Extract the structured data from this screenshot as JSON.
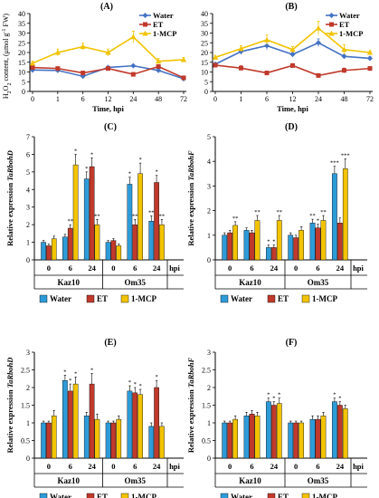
{
  "colors": {
    "water_line": "#4472C4",
    "et_line": "#C0392B",
    "mcp_line": "#F2C300",
    "water_bar": "#2E9BD9",
    "et_bar": "#C0392B",
    "mcp_bar": "#F2C300",
    "axis": "#000000"
  },
  "chart_data": [
    {
      "type": "line",
      "panel": "(A)",
      "title": "(A)",
      "xlabel": "Time, hpi",
      "ylabel": "H2O2 content, (μmol g-1 FW)",
      "x": [
        "0",
        "1",
        "6",
        "12",
        "24",
        "48",
        "72"
      ],
      "ylim": [
        0,
        40
      ],
      "yticks": [
        0,
        5,
        10,
        15,
        20,
        25,
        30,
        35,
        40
      ],
      "legend_position": "top-right",
      "series": [
        {
          "name": "Water",
          "values": [
            11.0,
            10.8,
            7.8,
            12.3,
            13.2,
            10.8,
            6.5
          ],
          "errors": [
            0.5,
            0.6,
            0.6,
            0.6,
            0.6,
            0.6,
            0.5
          ]
        },
        {
          "name": "ET",
          "values": [
            12.3,
            11.8,
            9.5,
            11.8,
            8.8,
            12.8,
            7.0
          ],
          "errors": [
            0.6,
            0.7,
            0.7,
            0.7,
            0.7,
            0.8,
            0.6
          ]
        },
        {
          "name": "1-MCP",
          "values": [
            14.5,
            20.0,
            23.0,
            20.0,
            28.0,
            15.5,
            16.3
          ],
          "errors": [
            1.0,
            1.8,
            1.8,
            1.8,
            3.0,
            1.5,
            1.2
          ]
        }
      ]
    },
    {
      "type": "line",
      "panel": "(B)",
      "title": "(B)",
      "xlabel": "Time, hpi",
      "ylabel": "",
      "x": [
        "0",
        "1",
        "6",
        "12",
        "24",
        "48",
        "72"
      ],
      "ylim": [
        0,
        40
      ],
      "yticks": [
        0,
        5,
        10,
        15,
        20,
        25,
        30,
        35,
        40
      ],
      "legend_position": "top-right",
      "series": [
        {
          "name": "Water",
          "values": [
            14.0,
            20.5,
            23.5,
            19.0,
            25.0,
            18.0,
            17.0
          ],
          "errors": [
            0.8,
            1.5,
            2.0,
            1.0,
            2.0,
            1.0,
            1.0
          ]
        },
        {
          "name": "ET",
          "values": [
            13.5,
            12.0,
            9.5,
            13.3,
            8.2,
            10.8,
            11.8
          ],
          "errors": [
            0.7,
            1.2,
            1.0,
            1.0,
            0.8,
            1.2,
            1.0
          ]
        },
        {
          "name": "1-MCP",
          "values": [
            17.5,
            22.0,
            26.5,
            21.5,
            32.5,
            21.5,
            20.0
          ],
          "errors": [
            1.0,
            1.5,
            2.5,
            1.5,
            3.5,
            2.5,
            1.0
          ]
        }
      ]
    },
    {
      "type": "bar",
      "panel": "(C)",
      "title": "(C)",
      "ylabel": "Relative expression TaRbohD",
      "ylim": [
        0,
        7
      ],
      "yticks": [
        0,
        1,
        2,
        3,
        4,
        5,
        6,
        7
      ],
      "groups": [
        {
          "name": "Kaz10",
          "categories": [
            "0",
            "6",
            "24"
          ]
        },
        {
          "name": "Om35",
          "categories": [
            "0",
            "6",
            "24"
          ]
        }
      ],
      "hpi_label": "hpi",
      "series": [
        {
          "name": "Water",
          "values": [
            1.0,
            1.3,
            4.6,
            1.0,
            4.3,
            2.2
          ],
          "errors": [
            0.1,
            0.15,
            0.4,
            0.1,
            0.4,
            0.3
          ],
          "stars": [
            "",
            "",
            "*",
            "",
            "*",
            "**"
          ]
        },
        {
          "name": "ET",
          "values": [
            0.8,
            1.8,
            5.3,
            1.1,
            2.0,
            4.4
          ],
          "errors": [
            0.1,
            0.2,
            0.5,
            0.1,
            0.3,
            0.4
          ],
          "stars": [
            "",
            "**",
            "*",
            "",
            "**",
            "*"
          ]
        },
        {
          "name": "1-MCP",
          "values": [
            1.2,
            5.4,
            2.0,
            0.8,
            4.9,
            2.0
          ],
          "errors": [
            0.15,
            0.6,
            0.3,
            0.1,
            0.6,
            0.3
          ],
          "stars": [
            "",
            "*",
            "**",
            "",
            "*",
            "**"
          ]
        }
      ]
    },
    {
      "type": "bar",
      "panel": "(D)",
      "title": "(D)",
      "ylabel": "Relative expression TaRbohF",
      "ylim": [
        0,
        5
      ],
      "yticks": [
        0,
        1,
        2,
        3,
        4,
        5
      ],
      "groups": [
        {
          "name": "Kaz10",
          "categories": [
            "0",
            "6",
            "24"
          ]
        },
        {
          "name": "Om35",
          "categories": [
            "0",
            "6",
            "24"
          ]
        }
      ],
      "hpi_label": "hpi",
      "series": [
        {
          "name": "Water",
          "values": [
            1.0,
            1.2,
            0.5,
            1.0,
            1.5,
            3.5
          ],
          "errors": [
            0.1,
            0.1,
            0.1,
            0.1,
            0.15,
            0.3
          ],
          "stars": [
            "",
            "",
            "*",
            "",
            "**",
            "***"
          ]
        },
        {
          "name": "ET",
          "values": [
            1.1,
            1.1,
            0.5,
            0.9,
            1.3,
            1.5
          ],
          "errors": [
            0.1,
            0.1,
            0.1,
            0.1,
            0.15,
            0.2
          ],
          "stars": [
            "",
            "",
            "*",
            "",
            "*",
            ""
          ]
        },
        {
          "name": "1-MCP",
          "values": [
            1.4,
            1.6,
            1.6,
            1.2,
            1.6,
            3.7
          ],
          "errors": [
            0.15,
            0.2,
            0.2,
            0.15,
            0.2,
            0.4
          ],
          "stars": [
            "**",
            "**",
            "**",
            "",
            "**",
            "***"
          ]
        }
      ]
    },
    {
      "type": "bar",
      "panel": "(E)",
      "title": "(E)",
      "ylabel": "Relative expression TaRbohD",
      "ylim": [
        0,
        3
      ],
      "yticks": [
        0,
        0.5,
        1,
        1.5,
        2,
        2.5,
        3
      ],
      "groups": [
        {
          "name": "Kaz10",
          "categories": [
            "0",
            "6",
            "24"
          ]
        },
        {
          "name": "Om35",
          "categories": [
            "0",
            "6",
            "24"
          ]
        }
      ],
      "hpi_label": "hpi",
      "series": [
        {
          "name": "Water",
          "values": [
            1.0,
            2.2,
            1.2,
            1.0,
            1.9,
            0.9
          ],
          "errors": [
            0.05,
            0.15,
            0.1,
            0.05,
            0.15,
            0.1
          ],
          "stars": [
            "",
            "*",
            "",
            "",
            "*",
            ""
          ]
        },
        {
          "name": "ET",
          "values": [
            1.0,
            1.9,
            2.1,
            1.0,
            1.85,
            2.0
          ],
          "errors": [
            0.05,
            0.2,
            0.3,
            0.05,
            0.15,
            0.2
          ],
          "stars": [
            "",
            "*",
            "*",
            "",
            "*",
            "*"
          ]
        },
        {
          "name": "1-MCP",
          "values": [
            1.2,
            2.1,
            1.1,
            1.1,
            1.8,
            0.9
          ],
          "errors": [
            0.15,
            0.2,
            0.15,
            0.1,
            0.15,
            0.1
          ],
          "stars": [
            "",
            "*",
            "",
            "",
            "*",
            ""
          ]
        }
      ]
    },
    {
      "type": "bar",
      "panel": "(F)",
      "title": "(F)",
      "ylabel": "Relative expression TaRbohF",
      "ylim": [
        0,
        3
      ],
      "yticks": [
        0,
        0.5,
        1,
        1.5,
        2,
        2.5,
        3
      ],
      "groups": [
        {
          "name": "Kaz10",
          "categories": [
            "0",
            "6",
            "24"
          ]
        },
        {
          "name": "Om35",
          "categories": [
            "0",
            "6",
            "24"
          ]
        }
      ],
      "hpi_label": "hpi",
      "series": [
        {
          "name": "Water",
          "values": [
            1.0,
            1.2,
            1.6,
            1.0,
            1.1,
            1.6
          ],
          "errors": [
            0.05,
            0.1,
            0.1,
            0.05,
            0.1,
            0.1
          ],
          "stars": [
            "",
            "",
            "*",
            "",
            "",
            "*"
          ]
        },
        {
          "name": "ET",
          "values": [
            1.0,
            1.25,
            1.5,
            1.0,
            1.1,
            1.5
          ],
          "errors": [
            0.05,
            0.1,
            0.1,
            0.05,
            0.1,
            0.1
          ],
          "stars": [
            "",
            "",
            "*",
            "",
            "",
            "*"
          ]
        },
        {
          "name": "1-MCP",
          "values": [
            1.1,
            1.2,
            1.55,
            1.0,
            1.2,
            1.4
          ],
          "errors": [
            0.1,
            0.1,
            0.15,
            0.05,
            0.1,
            0.1
          ],
          "stars": [
            "",
            "",
            "*",
            "",
            "",
            ""
          ]
        }
      ]
    }
  ]
}
